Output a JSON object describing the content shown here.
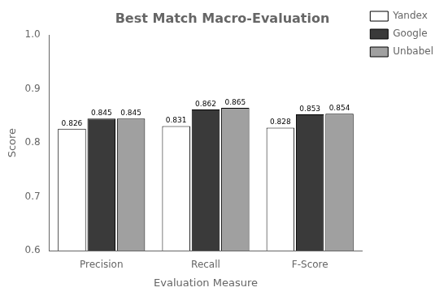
{
  "chart_data": {
    "type": "bar",
    "title": "Best Match Macro-Evaluation",
    "x_label": "Evaluation Measure",
    "y_label": "Score",
    "categories": [
      "Precision",
      "Recall",
      "F-Score"
    ],
    "series": [
      {
        "name": "Yandex",
        "color": "#ffffff",
        "values": [
          0.826,
          0.831,
          0.828
        ]
      },
      {
        "name": "Google",
        "color": "#3a3a3a",
        "values": [
          0.845,
          0.862,
          0.853
        ]
      },
      {
        "name": "Unbabel",
        "color": "#a0a0a0",
        "values": [
          0.845,
          0.865,
          0.854
        ]
      }
    ],
    "ylim": [
      0.6,
      1.0
    ],
    "yticks": [
      0.6,
      0.7,
      0.8,
      0.9,
      {
        "value": 1.0,
        "label": "1.0"
      }
    ],
    "grid": false,
    "legend": "right",
    "data_labels": true
  }
}
